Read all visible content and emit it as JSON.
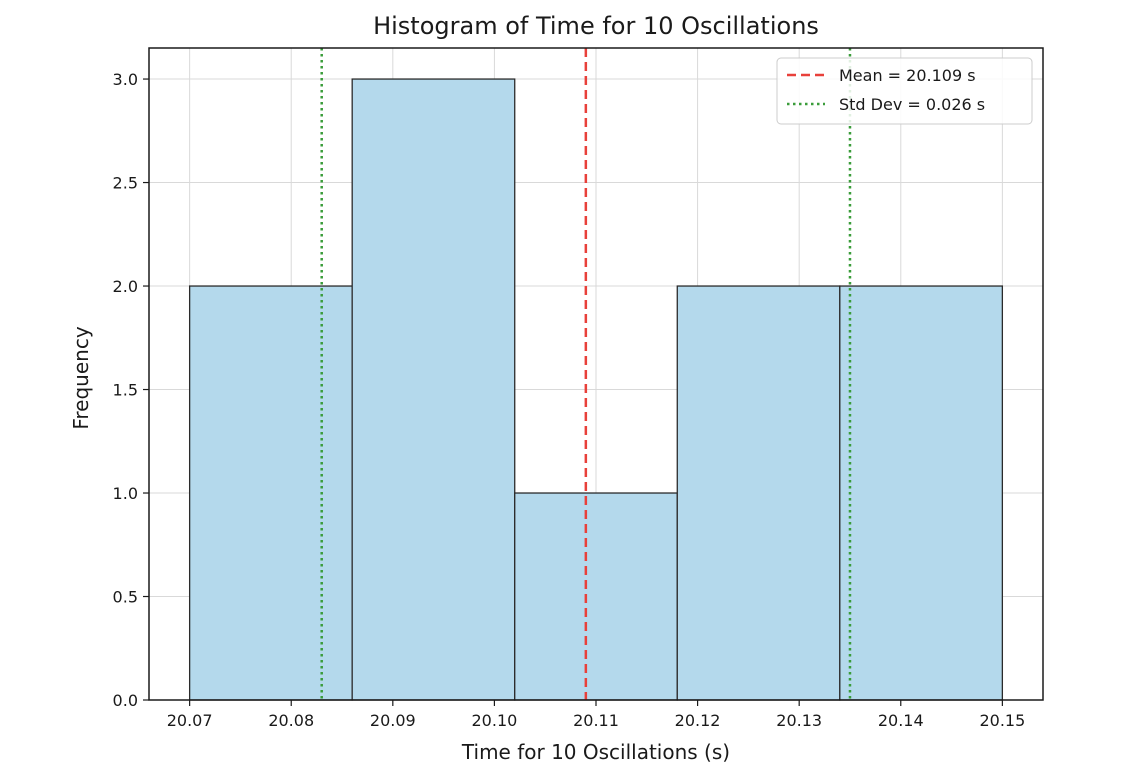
{
  "chart_data": {
    "type": "bar",
    "title": "Histogram of Time for 10 Oscillations",
    "xlabel": "Time for 10 Oscillations (s)",
    "ylabel": "Frequency",
    "xlim": [
      20.066,
      20.154
    ],
    "ylim": [
      0,
      3.15
    ],
    "xticks": [
      20.07,
      20.08,
      20.09,
      20.1,
      20.11,
      20.12,
      20.13,
      20.14,
      20.15
    ],
    "xtick_labels": [
      "20.07",
      "20.08",
      "20.09",
      "20.10",
      "20.11",
      "20.12",
      "20.13",
      "20.14",
      "20.15"
    ],
    "yticks": [
      0,
      0.5,
      1.0,
      1.5,
      2.0,
      2.5,
      3.0
    ],
    "ytick_labels": [
      "0.0",
      "0.5",
      "1.0",
      "1.5",
      "2.0",
      "2.5",
      "3.0"
    ],
    "bin_edges": [
      20.07,
      20.086,
      20.102,
      20.118,
      20.134,
      20.15
    ],
    "values": [
      2,
      3,
      1,
      2,
      2
    ],
    "grid": true,
    "bar_color": "#b4d9ec",
    "reference_lines": [
      {
        "label": "Mean = 20.109 s",
        "x": [
          20.109
        ],
        "style": "dashed",
        "color": "#e8403a"
      },
      {
        "label": "Std Dev = 0.026 s",
        "x": [
          20.083,
          20.135
        ],
        "style": "dotted",
        "color": "#3a9c3a"
      }
    ],
    "legend_position": "top-right"
  }
}
